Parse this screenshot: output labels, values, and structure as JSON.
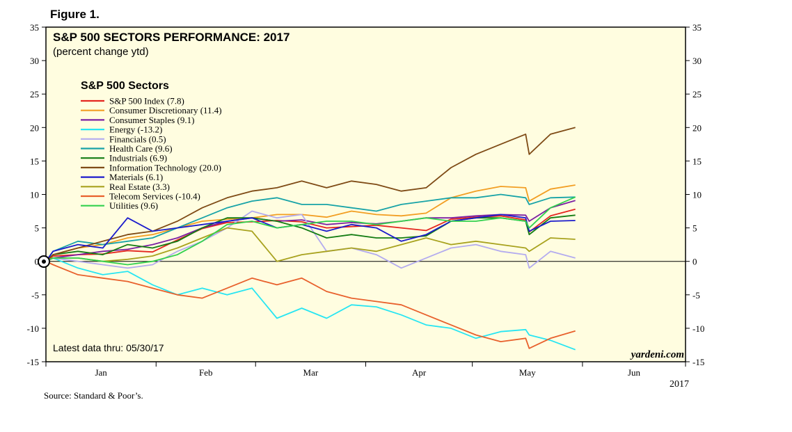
{
  "figure_label": "Figure 1.",
  "source": "Source: Standard & Poor’s.",
  "watermark": "yardeni.com",
  "colors": {
    "plot_background": "#fffde0",
    "frame": "#000000"
  },
  "chart_data": {
    "type": "line",
    "title": "S&P 500 SECTORS PERFORMANCE: 2017",
    "subtitle": "(percent change ytd)",
    "legend_title": "S&P 500 Sectors",
    "legend_position": "top-left",
    "note": "Latest data thru: 05/30/17",
    "x_year_label": "2017",
    "x_month_ticks": [
      "Jan",
      "Feb",
      "Mar",
      "Apr",
      "May",
      "Jun"
    ],
    "xlim": [
      "2017-01-01",
      "2017-06-30"
    ],
    "ylim": [
      -15,
      35
    ],
    "y_ticks": [
      -15,
      -10,
      -5,
      0,
      5,
      10,
      15,
      20,
      25,
      30,
      35
    ],
    "grid": false,
    "zero_line": true,
    "series": [
      {
        "name": "S&P 500 Index (7.8)",
        "color": "#e4261f",
        "x": [
          "2017-01-03",
          "2017-01-10",
          "2017-01-17",
          "2017-01-24",
          "2017-01-31",
          "2017-02-07",
          "2017-02-14",
          "2017-02-21",
          "2017-02-28",
          "2017-03-07",
          "2017-03-14",
          "2017-03-21",
          "2017-03-28",
          "2017-04-04",
          "2017-04-11",
          "2017-04-18",
          "2017-04-25",
          "2017-05-02",
          "2017-05-09",
          "2017-05-16",
          "2017-05-17",
          "2017-05-23",
          "2017-05-30"
        ],
        "values": [
          0.8,
          1.0,
          1.1,
          1.6,
          1.4,
          3.2,
          4.9,
          5.8,
          5.9,
          6.1,
          5.9,
          5.0,
          5.2,
          5.4,
          5.0,
          4.6,
          6.3,
          6.6,
          6.8,
          6.2,
          4.4,
          6.8,
          7.8
        ]
      },
      {
        "name": "Consumer Discretionary (11.4)",
        "color": "#f29e23",
        "x": [
          "2017-01-03",
          "2017-01-10",
          "2017-01-17",
          "2017-01-24",
          "2017-01-31",
          "2017-02-07",
          "2017-02-14",
          "2017-02-21",
          "2017-02-28",
          "2017-03-07",
          "2017-03-14",
          "2017-03-21",
          "2017-03-28",
          "2017-04-04",
          "2017-04-11",
          "2017-04-18",
          "2017-04-25",
          "2017-05-02",
          "2017-05-09",
          "2017-05-16",
          "2017-05-17",
          "2017-05-23",
          "2017-05-30"
        ],
        "values": [
          1.0,
          2.0,
          2.5,
          3.5,
          4.0,
          5.0,
          6.0,
          6.3,
          6.5,
          7.0,
          7.0,
          6.6,
          7.5,
          7.0,
          6.8,
          7.2,
          9.5,
          10.5,
          11.2,
          11.0,
          9.0,
          10.8,
          11.4
        ]
      },
      {
        "name": "Consumer Staples (9.1)",
        "color": "#7b1fa2",
        "x": [
          "2017-01-03",
          "2017-01-10",
          "2017-01-17",
          "2017-01-24",
          "2017-01-31",
          "2017-02-07",
          "2017-02-14",
          "2017-02-21",
          "2017-02-28",
          "2017-03-07",
          "2017-03-14",
          "2017-03-21",
          "2017-03-28",
          "2017-04-04",
          "2017-04-11",
          "2017-04-18",
          "2017-04-25",
          "2017-05-02",
          "2017-05-09",
          "2017-05-16",
          "2017-05-17",
          "2017-05-23",
          "2017-05-30"
        ],
        "values": [
          0.5,
          1.0,
          1.5,
          1.8,
          2.5,
          3.5,
          5.0,
          6.0,
          6.5,
          6.0,
          6.2,
          5.5,
          5.8,
          5.6,
          6.0,
          6.5,
          6.5,
          6.8,
          7.0,
          6.9,
          6.0,
          8.0,
          9.1
        ]
      },
      {
        "name": "Energy (-13.2)",
        "color": "#27e5f2",
        "x": [
          "2017-01-03",
          "2017-01-10",
          "2017-01-17",
          "2017-01-24",
          "2017-01-31",
          "2017-02-07",
          "2017-02-14",
          "2017-02-21",
          "2017-02-28",
          "2017-03-07",
          "2017-03-14",
          "2017-03-21",
          "2017-03-28",
          "2017-04-04",
          "2017-04-11",
          "2017-04-18",
          "2017-04-25",
          "2017-05-02",
          "2017-05-09",
          "2017-05-16",
          "2017-05-17",
          "2017-05-23",
          "2017-05-30"
        ],
        "values": [
          0.5,
          -1.0,
          -2.0,
          -1.5,
          -3.5,
          -5.0,
          -4.0,
          -5.0,
          -4.0,
          -8.5,
          -7.0,
          -8.5,
          -6.5,
          -6.8,
          -8.0,
          -9.5,
          -10.0,
          -11.5,
          -10.5,
          -10.2,
          -11.0,
          -11.8,
          -13.2
        ]
      },
      {
        "name": "Financials (0.5)",
        "color": "#b3abef",
        "x": [
          "2017-01-03",
          "2017-01-10",
          "2017-01-17",
          "2017-01-24",
          "2017-01-31",
          "2017-02-07",
          "2017-02-14",
          "2017-02-21",
          "2017-02-28",
          "2017-03-07",
          "2017-03-14",
          "2017-03-21",
          "2017-03-28",
          "2017-04-04",
          "2017-04-11",
          "2017-04-18",
          "2017-04-25",
          "2017-05-02",
          "2017-05-09",
          "2017-05-16",
          "2017-05-17",
          "2017-05-23",
          "2017-05-30"
        ],
        "values": [
          0.5,
          0.0,
          -0.5,
          -1.0,
          -0.5,
          1.5,
          3.0,
          5.0,
          7.5,
          6.5,
          7.0,
          1.5,
          2.0,
          1.0,
          -1.0,
          0.5,
          2.0,
          2.5,
          1.5,
          1.0,
          -1.0,
          1.5,
          0.5
        ]
      },
      {
        "name": "Health Care (9.6)",
        "color": "#17a3a7",
        "x": [
          "2017-01-03",
          "2017-01-10",
          "2017-01-17",
          "2017-01-24",
          "2017-01-31",
          "2017-02-07",
          "2017-02-14",
          "2017-02-21",
          "2017-02-28",
          "2017-03-07",
          "2017-03-14",
          "2017-03-21",
          "2017-03-28",
          "2017-04-04",
          "2017-04-11",
          "2017-04-18",
          "2017-04-25",
          "2017-05-02",
          "2017-05-09",
          "2017-05-16",
          "2017-05-17",
          "2017-05-23",
          "2017-05-30"
        ],
        "values": [
          1.5,
          3.0,
          2.5,
          3.0,
          3.5,
          5.0,
          6.5,
          8.0,
          9.0,
          9.5,
          8.5,
          8.5,
          8.0,
          7.5,
          8.5,
          9.0,
          9.5,
          9.5,
          10.0,
          9.5,
          8.5,
          9.5,
          9.6
        ]
      },
      {
        "name": "Industrials (6.9)",
        "color": "#137c13",
        "x": [
          "2017-01-03",
          "2017-01-10",
          "2017-01-17",
          "2017-01-24",
          "2017-01-31",
          "2017-02-07",
          "2017-02-14",
          "2017-02-21",
          "2017-02-28",
          "2017-03-07",
          "2017-03-14",
          "2017-03-21",
          "2017-03-28",
          "2017-04-04",
          "2017-04-11",
          "2017-04-18",
          "2017-04-25",
          "2017-05-02",
          "2017-05-09",
          "2017-05-16",
          "2017-05-17",
          "2017-05-23",
          "2017-05-30"
        ],
        "values": [
          1.0,
          1.5,
          1.0,
          2.5,
          2.0,
          3.0,
          5.0,
          6.5,
          6.5,
          6.0,
          5.0,
          3.5,
          4.0,
          3.5,
          3.5,
          3.8,
          6.0,
          6.5,
          6.5,
          6.0,
          4.0,
          6.5,
          6.9
        ]
      },
      {
        "name": "Information Technology (20.0)",
        "color": "#7e4a15",
        "x": [
          "2017-01-03",
          "2017-01-10",
          "2017-01-17",
          "2017-01-24",
          "2017-01-31",
          "2017-02-07",
          "2017-02-14",
          "2017-02-21",
          "2017-02-28",
          "2017-03-07",
          "2017-03-14",
          "2017-03-21",
          "2017-03-28",
          "2017-04-04",
          "2017-04-11",
          "2017-04-18",
          "2017-04-25",
          "2017-05-02",
          "2017-05-09",
          "2017-05-16",
          "2017-05-17",
          "2017-05-23",
          "2017-05-30"
        ],
        "values": [
          1.0,
          2.0,
          3.0,
          4.0,
          4.5,
          6.0,
          8.0,
          9.5,
          10.5,
          11.0,
          12.0,
          11.0,
          12.0,
          11.5,
          10.5,
          11.0,
          14.0,
          16.0,
          17.5,
          19.0,
          16.0,
          19.0,
          20.0
        ]
      },
      {
        "name": "Materials (6.1)",
        "color": "#1b1bcc",
        "x": [
          "2017-01-03",
          "2017-01-10",
          "2017-01-17",
          "2017-01-24",
          "2017-01-31",
          "2017-02-07",
          "2017-02-14",
          "2017-02-21",
          "2017-02-28",
          "2017-03-07",
          "2017-03-14",
          "2017-03-21",
          "2017-03-28",
          "2017-04-04",
          "2017-04-11",
          "2017-04-18",
          "2017-04-25",
          "2017-05-02",
          "2017-05-09",
          "2017-05-16",
          "2017-05-17",
          "2017-05-23",
          "2017-05-30"
        ],
        "values": [
          1.5,
          2.5,
          2.0,
          6.5,
          4.5,
          5.0,
          5.5,
          6.0,
          6.5,
          5.0,
          5.5,
          4.5,
          5.5,
          5.0,
          3.0,
          4.0,
          6.0,
          6.5,
          7.0,
          6.5,
          4.5,
          6.0,
          6.1
        ]
      },
      {
        "name": "Real Estate (3.3)",
        "color": "#a8a21e",
        "x": [
          "2017-01-03",
          "2017-01-10",
          "2017-01-17",
          "2017-01-24",
          "2017-01-31",
          "2017-02-07",
          "2017-02-14",
          "2017-02-21",
          "2017-02-28",
          "2017-03-07",
          "2017-03-14",
          "2017-03-21",
          "2017-03-28",
          "2017-04-04",
          "2017-04-11",
          "2017-04-18",
          "2017-04-25",
          "2017-05-02",
          "2017-05-09",
          "2017-05-16",
          "2017-05-17",
          "2017-05-23",
          "2017-05-30"
        ],
        "values": [
          0.5,
          0.5,
          0.0,
          0.3,
          0.8,
          2.0,
          3.5,
          5.0,
          4.5,
          0.0,
          1.0,
          1.5,
          2.0,
          1.5,
          2.5,
          3.5,
          2.5,
          3.0,
          2.5,
          2.0,
          1.5,
          3.5,
          3.3
        ]
      },
      {
        "name": "Telecom Services (-10.4)",
        "color": "#e8602c",
        "x": [
          "2017-01-03",
          "2017-01-10",
          "2017-01-17",
          "2017-01-24",
          "2017-01-31",
          "2017-02-07",
          "2017-02-14",
          "2017-02-21",
          "2017-02-28",
          "2017-03-07",
          "2017-03-14",
          "2017-03-21",
          "2017-03-28",
          "2017-04-04",
          "2017-04-11",
          "2017-04-18",
          "2017-04-25",
          "2017-05-02",
          "2017-05-09",
          "2017-05-16",
          "2017-05-17",
          "2017-05-23",
          "2017-05-30"
        ],
        "values": [
          -0.5,
          -2.0,
          -2.5,
          -3.0,
          -4.0,
          -5.0,
          -5.5,
          -4.0,
          -2.5,
          -3.5,
          -2.5,
          -4.5,
          -5.5,
          -6.0,
          -6.5,
          -8.0,
          -9.5,
          -11.0,
          -12.0,
          -11.5,
          -13.0,
          -11.5,
          -10.4
        ]
      },
      {
        "name": "Utilities (9.6)",
        "color": "#32d14e",
        "x": [
          "2017-01-03",
          "2017-01-10",
          "2017-01-17",
          "2017-01-24",
          "2017-01-31",
          "2017-02-07",
          "2017-02-14",
          "2017-02-21",
          "2017-02-28",
          "2017-03-07",
          "2017-03-14",
          "2017-03-21",
          "2017-03-28",
          "2017-04-04",
          "2017-04-11",
          "2017-04-18",
          "2017-04-25",
          "2017-05-02",
          "2017-05-09",
          "2017-05-16",
          "2017-05-17",
          "2017-05-23",
          "2017-05-30"
        ],
        "values": [
          0.5,
          0.5,
          0.0,
          -0.5,
          0.0,
          1.0,
          3.0,
          5.5,
          6.0,
          5.0,
          5.5,
          6.0,
          6.0,
          5.5,
          6.0,
          6.5,
          6.0,
          6.0,
          6.5,
          6.0,
          5.0,
          8.0,
          9.6
        ]
      }
    ]
  }
}
